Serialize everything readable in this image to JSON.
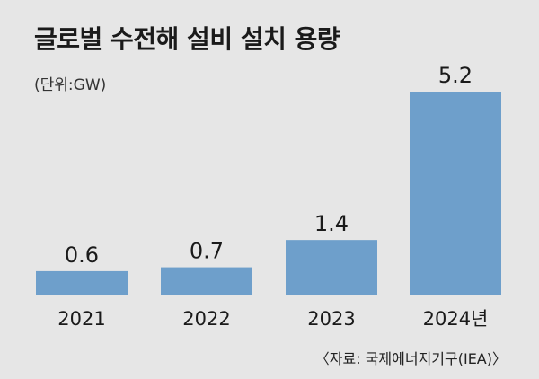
{
  "title": "글로벌 수전해 설비 설치 용량",
  "unit": "(단위:GW)",
  "source": "〈자료: 국제에너지기구(IEA)〉",
  "colors": {
    "bar": "#6e9fcb",
    "background": "#e6e6e6",
    "text": "#1a1a1a"
  },
  "chart_data": {
    "type": "bar",
    "title": "글로벌 수전해 설비 설치 용량",
    "ylabel": "(단위:GW)",
    "xlabel": "",
    "categories": [
      "2021",
      "2022",
      "2023",
      "2024년"
    ],
    "values": [
      0.6,
      0.7,
      1.4,
      5.2
    ],
    "value_labels": [
      "0.6",
      "0.7",
      "1.4",
      "5.2"
    ],
    "ylim": [
      0,
      5.2
    ],
    "grid": false,
    "legend": "none"
  }
}
